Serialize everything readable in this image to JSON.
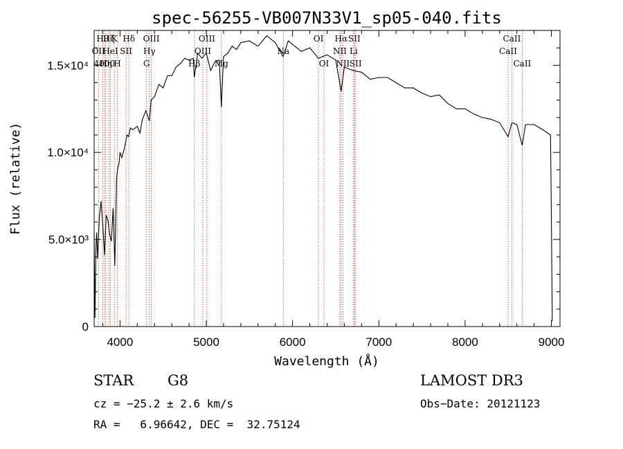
{
  "chart_data": {
    "type": "line",
    "title": "spec-56255-VB007N33V1_sp05-040.fits",
    "xlabel": "Wavelength (Å)",
    "ylabel": "Flux (relative)",
    "xlim": [
      3700,
      9100
    ],
    "ylim": [
      0,
      17000
    ],
    "xticks": [
      {
        "value": 4000,
        "label": "4000"
      },
      {
        "value": 5000,
        "label": "5000"
      },
      {
        "value": 6000,
        "label": "6000"
      },
      {
        "value": 7000,
        "label": "7000"
      },
      {
        "value": 8000,
        "label": "8000"
      },
      {
        "value": 9000,
        "label": "9000"
      }
    ],
    "yticks": [
      {
        "value": 0,
        "label": "0"
      },
      {
        "value": 5000,
        "label": "5.0×10³"
      },
      {
        "value": 10000,
        "label": "1.0×10⁴"
      },
      {
        "value": 15000,
        "label": "1.5×10⁴"
      }
    ],
    "series": [
      {
        "name": "spectrum",
        "x": [
          3700,
          3710,
          3720,
          3730,
          3740,
          3760,
          3780,
          3800,
          3820,
          3840,
          3860,
          3880,
          3900,
          3920,
          3940,
          3960,
          3970,
          3990,
          4000,
          4020,
          4050,
          4080,
          4100,
          4120,
          4150,
          4200,
          4230,
          4260,
          4300,
          4340,
          4360,
          4400,
          4450,
          4500,
          4550,
          4600,
          4650,
          4700,
          4750,
          4800,
          4850,
          4861,
          4900,
          4950,
          5000,
          5050,
          5100,
          5150,
          5175,
          5200,
          5250,
          5300,
          5350,
          5400,
          5500,
          5600,
          5700,
          5800,
          5890,
          5950,
          6000,
          6100,
          6200,
          6300,
          6400,
          6500,
          6563,
          6600,
          6700,
          6800,
          6900,
          7000,
          7100,
          7200,
          7300,
          7400,
          7500,
          7600,
          7700,
          7800,
          7900,
          8000,
          8100,
          8200,
          8300,
          8400,
          8498,
          8542,
          8600,
          8662,
          8700,
          8800,
          8900,
          8990,
          9000,
          9010
        ],
        "y": [
          5400,
          500,
          4400,
          5400,
          3900,
          6300,
          7200,
          5800,
          4100,
          6400,
          6100,
          5300,
          4900,
          6800,
          3500,
          8500,
          9000,
          9400,
          10000,
          9700,
          10200,
          11000,
          10900,
          11400,
          11300,
          11500,
          11100,
          11900,
          12400,
          11800,
          13000,
          13200,
          13900,
          13700,
          14400,
          14400,
          14900,
          15100,
          15400,
          15300,
          15400,
          14300,
          15700,
          15400,
          15700,
          14700,
          15200,
          15300,
          12600,
          15500,
          15700,
          16100,
          15900,
          16300,
          16400,
          16100,
          16700,
          16300,
          15500,
          16400,
          16200,
          15800,
          16000,
          15400,
          15600,
          15300,
          13500,
          14900,
          14700,
          14600,
          14200,
          14300,
          14300,
          14000,
          13700,
          13700,
          13400,
          13200,
          13300,
          12800,
          12500,
          12500,
          12200,
          12000,
          11900,
          11700,
          10900,
          11700,
          11600,
          10400,
          11600,
          11600,
          11300,
          11000,
          6500,
          300
        ]
      }
    ],
    "lines": [
      {
        "x": 3750,
        "label": "OII",
        "row": 1
      },
      {
        "x": 3798,
        "label": "Hθ",
        "row": 0
      },
      {
        "x": 3820,
        "label": "4000",
        "row": 2
      },
      {
        "x": 3835,
        "label": "Hη",
        "row": 2
      },
      {
        "x": 3870,
        "label": "Hζ",
        "row": 0
      },
      {
        "x": 3889,
        "label": "HeI",
        "row": 1
      },
      {
        "x": 3934,
        "label": "K",
        "row": 0
      },
      {
        "x": 3969,
        "label": "H",
        "row": 2
      },
      {
        "x": 4070,
        "label": "SII",
        "row": 1
      },
      {
        "x": 4102,
        "label": "Hδ",
        "row": 0
      },
      {
        "x": 4307,
        "label": "G",
        "row": 2
      },
      {
        "x": 4340,
        "label": "Hγ",
        "row": 1
      },
      {
        "x": 4363,
        "label": "OIII",
        "row": 0
      },
      {
        "x": 4861,
        "label": "Hβ",
        "row": 2
      },
      {
        "x": 4959,
        "label": "OIII",
        "row": 1
      },
      {
        "x": 5007,
        "label": "OIII",
        "row": 0
      },
      {
        "x": 5175,
        "label": "Mg",
        "row": 2
      },
      {
        "x": 5893,
        "label": "Na",
        "row": 1
      },
      {
        "x": 6300,
        "label": "OI",
        "row": 0
      },
      {
        "x": 6364,
        "label": "OI",
        "row": 2
      },
      {
        "x": 6548,
        "label": "NII",
        "row": 1
      },
      {
        "x": 6563,
        "label": "Hα",
        "row": 0
      },
      {
        "x": 6583,
        "label": "NII",
        "row": 2
      },
      {
        "x": 6708,
        "label": "Li",
        "row": 1
      },
      {
        "x": 6716,
        "label": "SII",
        "row": 0
      },
      {
        "x": 6731,
        "label": "SII",
        "row": 2
      },
      {
        "x": 8498,
        "label": "CaII",
        "row": 1
      },
      {
        "x": 8542,
        "label": "CaII",
        "row": 0
      },
      {
        "x": 8662,
        "label": "CaII",
        "row": 2
      }
    ]
  },
  "info": {
    "class_label": "STAR",
    "subclass": "G8",
    "survey": "LAMOST DR3",
    "cz": "cz = −25.2 ± 2.6 km/s",
    "obs_date": "Obs−Date: 20121123",
    "coords": "RA =   6.96642, DEC =  32.75124"
  }
}
